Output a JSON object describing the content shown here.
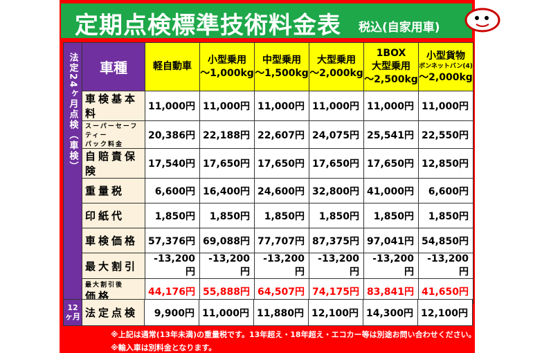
{
  "header": {
    "title": "定期点検標準技術料金表",
    "tax_note": "税込(自家用車)"
  },
  "table": {
    "side_label": "法定24ヶ月点検（車検）",
    "corner_label": "車種",
    "columns": [
      [
        "軽自動車"
      ],
      [
        "小型乗用",
        "～1,000kg"
      ],
      [
        "中型乗用",
        "～1,500kg"
      ],
      [
        "大型乗用",
        "～2,000kg"
      ],
      [
        "1BOX",
        "大型乗用",
        "～2,500kg"
      ],
      [
        "小型貨物",
        "ボンネットバン(4)",
        "～2,000kg"
      ]
    ],
    "rows": [
      {
        "label": [
          "車検基本料"
        ],
        "values": [
          "11,000円",
          "11,000円",
          "11,000円",
          "11,000円",
          "11,000円",
          "11,000円"
        ]
      },
      {
        "label": [
          "スーパーセーフティー",
          "パック料金"
        ],
        "values": [
          "20,386円",
          "22,188円",
          "22,607円",
          "24,075円",
          "25,541円",
          "22,550円"
        ]
      },
      {
        "label": [
          "自賠責保険"
        ],
        "values": [
          "17,540円",
          "17,650円",
          "17,650円",
          "17,650円",
          "17,650円",
          "12,850円"
        ]
      },
      {
        "label": [
          "重量税"
        ],
        "values": [
          "6,600円",
          "16,400円",
          "24,600円",
          "32,800円",
          "41,000円",
          "6,600円"
        ]
      },
      {
        "label": [
          "印紙代"
        ],
        "values": [
          "1,850円",
          "1,850円",
          "1,850円",
          "1,850円",
          "1,850円",
          "1,850円"
        ]
      },
      {
        "label": [
          "車検価格"
        ],
        "values": [
          "57,376円",
          "69,088円",
          "77,707円",
          "87,375円",
          "97,041円",
          "54,850円"
        ]
      },
      {
        "label": [
          "最大割引"
        ],
        "values": [
          "-13,200円",
          "-13,200円",
          "-13,200円",
          "-13,200円",
          "-13,200円",
          "-13,200円"
        ]
      },
      {
        "label": [
          "最大割引後",
          "価格"
        ],
        "values": [
          "44,176円",
          "55,888円",
          "64,507円",
          "74,175円",
          "83,841円",
          "41,650円"
        ]
      }
    ]
  },
  "twelve_month": {
    "side_label": "12ヶ月",
    "label": "法定点検",
    "values": [
      "9,900円",
      "11,000円",
      "11,880円",
      "12,100円",
      "14,300円",
      "12,100円"
    ]
  },
  "notes": [
    "※上記は通常(13年未満)の重量税です。13年超え・18年超え・エコカー等は別途お問い合わせください。",
    "※輸入車は別料金となります。"
  ]
}
